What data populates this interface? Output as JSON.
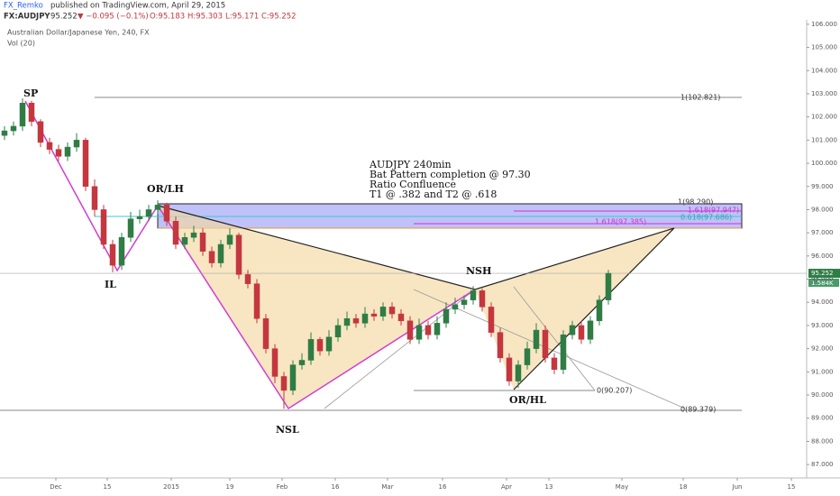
{
  "header": {
    "author": "FX_Remko",
    "published": "published on TradingView.com, April 29, 2015",
    "symbol": "FX:AUDJPY",
    "price": "95.252",
    "change": "▼ −0.095 (−0.1%)",
    "open": "O:95.183",
    "high": "H:95.303",
    "low": "L:95.171",
    "close": "C:95.252",
    "instrument": "Australian Dollar/Japanese Yen, 240, FX",
    "volume": "Vol (20)"
  },
  "annotations": {
    "sp": "SP",
    "il": "IL",
    "orlh": "OR/LH",
    "nsl": "NSL",
    "nsh": "NSH",
    "orhl": "OR/HL",
    "note": [
      "AUDJPY 240min",
      "Bat Pattern completion @ 97.30",
      "Ratio Confluence",
      "T1 @ .382 and T2 @ .618"
    ],
    "fib": [
      "1(102.821)",
      "1(98.290)",
      "1.618(97.947)",
      "0.618(97.686)",
      "1.618(97.385)",
      "0(90.207)",
      "0(89.379)"
    ],
    "volume_label": "1.584K"
  },
  "chart_data": {
    "type": "candlestick",
    "up_color": "#2f7d45",
    "down_color": "#c4373f",
    "grid": false,
    "open": [
      101.2,
      101.4,
      101.6,
      102.6,
      101.8,
      100.9,
      100.6,
      100.3,
      100.7,
      101.0,
      99.0,
      98.0,
      96.5,
      95.6,
      96.8,
      97.6,
      97.7,
      98.0,
      98.2,
      97.5,
      96.5,
      96.8,
      97.0,
      96.2,
      95.7,
      96.5,
      96.9,
      95.2,
      94.8,
      93.3,
      92.0,
      90.8,
      90.2,
      91.3,
      91.5,
      92.4,
      91.9,
      92.5,
      93.0,
      93.3,
      93.1,
      93.5,
      93.4,
      93.8,
      93.5,
      93.2,
      92.4,
      93.0,
      92.6,
      93.1,
      93.7,
      93.9,
      94.1,
      94.5,
      93.8,
      92.7,
      91.6,
      90.6,
      91.3,
      92.0,
      92.8,
      91.6,
      91.1,
      92.6,
      93.0,
      92.4,
      93.2,
      94.1
    ],
    "close": [
      101.4,
      101.6,
      102.6,
      101.8,
      100.9,
      100.6,
      100.3,
      100.7,
      101.0,
      99.0,
      98.0,
      96.5,
      95.6,
      96.8,
      97.6,
      97.7,
      98.0,
      98.2,
      97.5,
      96.5,
      96.8,
      97.0,
      96.2,
      95.7,
      96.5,
      96.9,
      95.2,
      94.8,
      93.3,
      92.0,
      90.8,
      90.2,
      91.3,
      91.5,
      92.4,
      91.9,
      92.5,
      93.0,
      93.3,
      93.1,
      93.5,
      93.4,
      93.8,
      93.5,
      93.2,
      92.4,
      93.0,
      92.6,
      93.1,
      93.7,
      93.9,
      94.1,
      94.5,
      93.8,
      92.7,
      91.6,
      90.6,
      91.3,
      92.0,
      92.8,
      91.6,
      91.1,
      92.6,
      93.0,
      92.4,
      93.2,
      94.1,
      95.25
    ],
    "high": [
      101.6,
      101.8,
      102.8,
      102.7,
      101.9,
      101.1,
      100.8,
      100.9,
      101.3,
      101.1,
      99.3,
      98.2,
      96.7,
      97.0,
      97.9,
      98.0,
      98.2,
      98.4,
      98.3,
      97.7,
      97.0,
      97.3,
      97.2,
      96.4,
      96.7,
      97.2,
      97.0,
      95.4,
      95.0,
      93.5,
      92.2,
      91.0,
      91.5,
      91.8,
      92.7,
      92.5,
      92.8,
      93.3,
      93.6,
      93.5,
      93.8,
      93.7,
      94.0,
      94.0,
      93.7,
      93.4,
      93.3,
      93.2,
      93.4,
      94.0,
      94.2,
      94.3,
      94.7,
      94.6,
      94.0,
      92.9,
      91.8,
      91.5,
      92.3,
      93.1,
      93.0,
      91.8,
      92.8,
      93.2,
      93.2,
      93.4,
      94.3,
      95.4
    ],
    "low": [
      101.0,
      101.2,
      101.4,
      101.6,
      100.7,
      100.4,
      100.1,
      100.1,
      100.5,
      98.8,
      97.7,
      96.3,
      95.3,
      95.4,
      96.6,
      97.4,
      97.5,
      97.8,
      97.3,
      96.3,
      96.3,
      96.6,
      96.0,
      95.5,
      95.5,
      96.3,
      95.0,
      94.6,
      93.1,
      91.8,
      90.5,
      89.4,
      90.0,
      91.1,
      91.3,
      91.7,
      91.7,
      92.3,
      92.8,
      92.9,
      92.9,
      93.2,
      93.2,
      93.3,
      93.0,
      92.2,
      92.2,
      92.4,
      92.4,
      92.9,
      93.5,
      93.7,
      93.9,
      93.6,
      92.5,
      91.4,
      90.4,
      90.3,
      91.1,
      91.8,
      91.4,
      90.9,
      90.9,
      92.4,
      92.2,
      92.2,
      93.0,
      93.9
    ],
    "xlim": [
      -0.5,
      89
    ],
    "ylim": [
      86.42,
      106.19
    ],
    "xticks": [
      {
        "value": 5.7,
        "label": "Dec"
      },
      {
        "value": 11.4,
        "label": "15"
      },
      {
        "value": 18.5,
        "label": "2015"
      },
      {
        "value": 25,
        "label": "19"
      },
      {
        "value": 30.8,
        "label": "Feb"
      },
      {
        "value": 36.7,
        "label": "16"
      },
      {
        "value": 42.5,
        "label": "Mar"
      },
      {
        "value": 48.6,
        "label": "16"
      },
      {
        "value": 55.7,
        "label": "Apr"
      },
      {
        "value": 60.4,
        "label": "13"
      },
      {
        "value": 68.5,
        "label": "May"
      },
      {
        "value": 75.3,
        "label": "18"
      },
      {
        "value": 81.3,
        "label": "Jun"
      },
      {
        "value": 87.3,
        "label": "15"
      }
    ],
    "yticks": [
      {
        "value": 87,
        "label": "87.000"
      },
      {
        "value": 88,
        "label": "88.000"
      },
      {
        "value": 89,
        "label": "89.000"
      },
      {
        "value": 90,
        "label": "90.000"
      },
      {
        "value": 91,
        "label": "91.000"
      },
      {
        "value": 92,
        "label": "92.000"
      },
      {
        "value": 93,
        "label": "93.000"
      },
      {
        "value": 94,
        "label": "94.000"
      },
      {
        "value": 95,
        "label": "95.000"
      },
      {
        "value": 96,
        "label": "96.000"
      },
      {
        "value": 97,
        "label": "97.000"
      },
      {
        "value": 98,
        "label": "98.000"
      },
      {
        "value": 99,
        "label": "99.000"
      },
      {
        "value": 100,
        "label": "100.000"
      },
      {
        "value": 101,
        "label": "101.000"
      },
      {
        "value": 102,
        "label": "102.000"
      },
      {
        "value": 103,
        "label": "103.000"
      },
      {
        "value": 104,
        "label": "104.000"
      },
      {
        "value": 105,
        "label": "105.000"
      },
      {
        "value": 106,
        "label": "106.000"
      }
    ],
    "last_price": {
      "value": 95.252,
      "label": "95.252"
    }
  }
}
